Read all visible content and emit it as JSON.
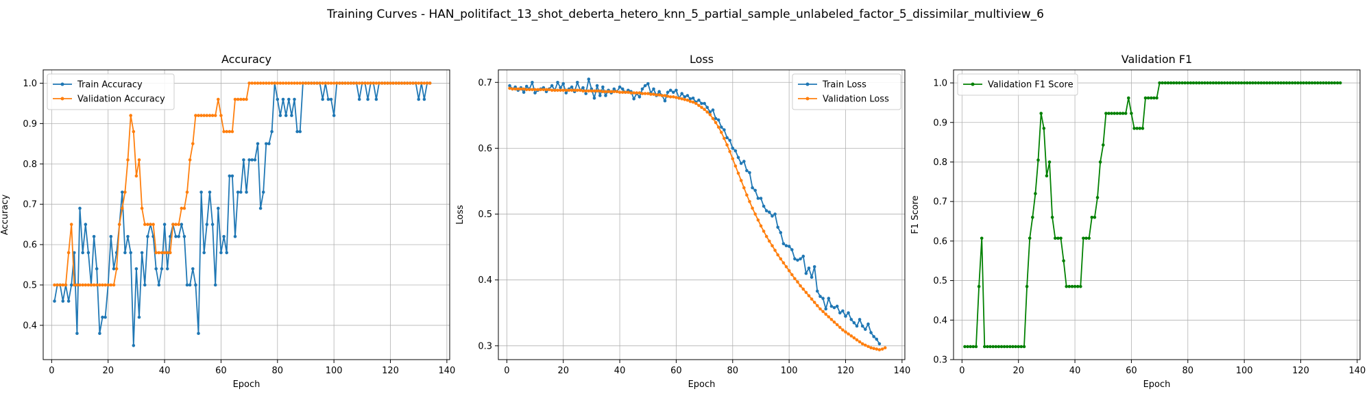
{
  "figure": {
    "suptitle": "Training Curves - HAN_politifact_13_shot_deberta_hetero_knn_5_partial_sample_unlabeled_factor_5_dissimilar_multiview_6"
  },
  "colors": {
    "blue": "#1f77b4",
    "orange": "#ff7f0e",
    "green": "#008000",
    "grid": "#b0b0b0"
  },
  "chart_data": [
    {
      "type": "line",
      "title": "Accuracy",
      "xlabel": "Epoch",
      "ylabel": "Accuracy",
      "xlim": [
        -3,
        141
      ],
      "ylim": [
        0.315,
        1.033
      ],
      "xticks": [
        0,
        20,
        40,
        60,
        80,
        100,
        120,
        140
      ],
      "yticks": [
        0.4,
        0.5,
        0.6,
        0.7,
        0.8,
        0.9,
        1.0
      ],
      "grid": true,
      "legend": "upper-left",
      "series": [
        {
          "name": "Train Accuracy",
          "color": "#1f77b4",
          "x_start": 1,
          "values": [
            0.46,
            0.5,
            0.5,
            0.46,
            0.5,
            0.46,
            0.5,
            0.58,
            0.38,
            0.69,
            0.58,
            0.65,
            0.58,
            0.5,
            0.62,
            0.54,
            0.38,
            0.42,
            0.42,
            0.5,
            0.62,
            0.54,
            0.58,
            0.65,
            0.73,
            0.58,
            0.62,
            0.58,
            0.35,
            0.54,
            0.42,
            0.58,
            0.5,
            0.62,
            0.65,
            0.62,
            0.54,
            0.5,
            0.54,
            0.65,
            0.54,
            0.62,
            0.65,
            0.62,
            0.62,
            0.65,
            0.62,
            0.5,
            0.5,
            0.54,
            0.5,
            0.38,
            0.73,
            0.58,
            0.65,
            0.73,
            0.65,
            0.5,
            0.69,
            0.58,
            0.62,
            0.58,
            0.77,
            0.77,
            0.62,
            0.73,
            0.73,
            0.81,
            0.73,
            0.81,
            0.81,
            0.81,
            0.85,
            0.69,
            0.73,
            0.85,
            0.85,
            0.88,
            1.0,
            0.96,
            0.92,
            0.96,
            0.92,
            0.96,
            0.92,
            0.96,
            0.88,
            0.88,
            1.0,
            1.0,
            1.0,
            1.0,
            1.0,
            1.0,
            1.0,
            0.96,
            1.0,
            0.96,
            0.96,
            0.92,
            1.0,
            1.0,
            1.0,
            1.0,
            1.0,
            1.0,
            1.0,
            1.0,
            0.96,
            1.0,
            1.0,
            0.96,
            1.0,
            1.0,
            0.96,
            1.0,
            1.0,
            1.0,
            1.0,
            1.0,
            1.0,
            1.0,
            1.0,
            1.0,
            1.0,
            1.0,
            1.0,
            1.0,
            1.0,
            0.96,
            1.0,
            0.96,
            1.0,
            1.0
          ]
        },
        {
          "name": "Validation Accuracy",
          "color": "#ff7f0e",
          "x_start": 1,
          "values": [
            0.5,
            0.5,
            0.5,
            0.5,
            0.5,
            0.58,
            0.65,
            0.5,
            0.5,
            0.5,
            0.5,
            0.5,
            0.5,
            0.5,
            0.5,
            0.5,
            0.5,
            0.5,
            0.5,
            0.5,
            0.5,
            0.5,
            0.54,
            0.65,
            0.69,
            0.73,
            0.81,
            0.92,
            0.88,
            0.77,
            0.81,
            0.69,
            0.65,
            0.65,
            0.65,
            0.65,
            0.58,
            0.58,
            0.58,
            0.58,
            0.58,
            0.58,
            0.65,
            0.65,
            0.65,
            0.69,
            0.69,
            0.73,
            0.81,
            0.85,
            0.92,
            0.92,
            0.92,
            0.92,
            0.92,
            0.92,
            0.92,
            0.92,
            0.96,
            0.92,
            0.88,
            0.88,
            0.88,
            0.88,
            0.96,
            0.96,
            0.96,
            0.96,
            0.96,
            1.0,
            1.0,
            1.0,
            1.0,
            1.0,
            1.0,
            1.0,
            1.0,
            1.0,
            1.0,
            1.0,
            1.0,
            1.0,
            1.0,
            1.0,
            1.0,
            1.0,
            1.0,
            1.0,
            1.0,
            1.0,
            1.0,
            1.0,
            1.0,
            1.0,
            1.0,
            1.0,
            1.0,
            1.0,
            1.0,
            1.0,
            1.0,
            1.0,
            1.0,
            1.0,
            1.0,
            1.0,
            1.0,
            1.0,
            1.0,
            1.0,
            1.0,
            1.0,
            1.0,
            1.0,
            1.0,
            1.0,
            1.0,
            1.0,
            1.0,
            1.0,
            1.0,
            1.0,
            1.0,
            1.0,
            1.0,
            1.0,
            1.0,
            1.0,
            1.0,
            1.0,
            1.0,
            1.0,
            1.0,
            1.0
          ]
        }
      ]
    },
    {
      "type": "line",
      "title": "Loss",
      "xlabel": "Epoch",
      "ylabel": "Loss",
      "xlim": [
        -3,
        141
      ],
      "ylim": [
        0.279,
        0.719
      ],
      "xticks": [
        0,
        20,
        40,
        60,
        80,
        100,
        120,
        140
      ],
      "yticks": [
        0.3,
        0.4,
        0.5,
        0.6,
        0.7
      ],
      "grid": true,
      "legend": "upper-right",
      "series": [
        {
          "name": "Train Loss",
          "color": "#1f77b4",
          "x_start": 1,
          "values": [
            0.695,
            0.69,
            0.693,
            0.688,
            0.692,
            0.685,
            0.694,
            0.69,
            0.7,
            0.684,
            0.688,
            0.69,
            0.692,
            0.686,
            0.69,
            0.695,
            0.688,
            0.7,
            0.692,
            0.698,
            0.684,
            0.69,
            0.693,
            0.686,
            0.7,
            0.688,
            0.692,
            0.683,
            0.705,
            0.69,
            0.676,
            0.695,
            0.68,
            0.693,
            0.68,
            0.688,
            0.684,
            0.69,
            0.686,
            0.693,
            0.69,
            0.685,
            0.688,
            0.686,
            0.675,
            0.683,
            0.678,
            0.69,
            0.695,
            0.698,
            0.684,
            0.69,
            0.68,
            0.686,
            0.68,
            0.672,
            0.685,
            0.688,
            0.685,
            0.688,
            0.676,
            0.683,
            0.678,
            0.68,
            0.675,
            0.676,
            0.67,
            0.673,
            0.668,
            0.668,
            0.662,
            0.655,
            0.658,
            0.645,
            0.643,
            0.632,
            0.628,
            0.616,
            0.612,
            0.6,
            0.596,
            0.586,
            0.577,
            0.58,
            0.566,
            0.563,
            0.54,
            0.536,
            0.524,
            0.524,
            0.512,
            0.505,
            0.503,
            0.497,
            0.5,
            0.48,
            0.472,
            0.455,
            0.452,
            0.451,
            0.446,
            0.432,
            0.43,
            0.432,
            0.436,
            0.41,
            0.418,
            0.404,
            0.42,
            0.383,
            0.375,
            0.372,
            0.356,
            0.372,
            0.36,
            0.358,
            0.36,
            0.35,
            0.353,
            0.345,
            0.35,
            0.34,
            0.335,
            0.33,
            0.34,
            0.33,
            0.325,
            0.333,
            0.32,
            0.314,
            0.31,
            0.303
          ]
        },
        {
          "name": "Validation Loss",
          "color": "#ff7f0e",
          "x_start": 1,
          "values": [
            0.691,
            0.69,
            0.69,
            0.69,
            0.69,
            0.69,
            0.689,
            0.689,
            0.689,
            0.689,
            0.689,
            0.689,
            0.689,
            0.689,
            0.689,
            0.688,
            0.688,
            0.688,
            0.688,
            0.688,
            0.688,
            0.688,
            0.688,
            0.688,
            0.688,
            0.688,
            0.687,
            0.687,
            0.687,
            0.687,
            0.687,
            0.687,
            0.687,
            0.686,
            0.686,
            0.686,
            0.686,
            0.686,
            0.686,
            0.685,
            0.685,
            0.685,
            0.685,
            0.684,
            0.684,
            0.684,
            0.684,
            0.683,
            0.683,
            0.683,
            0.682,
            0.682,
            0.681,
            0.681,
            0.68,
            0.68,
            0.679,
            0.678,
            0.678,
            0.677,
            0.676,
            0.675,
            0.674,
            0.673,
            0.671,
            0.67,
            0.668,
            0.665,
            0.662,
            0.659,
            0.655,
            0.651,
            0.645,
            0.639,
            0.632,
            0.624,
            0.615,
            0.605,
            0.595,
            0.584,
            0.573,
            0.562,
            0.551,
            0.54,
            0.529,
            0.519,
            0.509,
            0.5,
            0.491,
            0.482,
            0.474,
            0.466,
            0.459,
            0.452,
            0.445,
            0.438,
            0.432,
            0.426,
            0.42,
            0.414,
            0.408,
            0.402,
            0.397,
            0.391,
            0.386,
            0.381,
            0.376,
            0.371,
            0.366,
            0.361,
            0.356,
            0.352,
            0.348,
            0.344,
            0.34,
            0.336,
            0.332,
            0.328,
            0.324,
            0.321,
            0.318,
            0.315,
            0.312,
            0.309,
            0.306,
            0.303,
            0.301,
            0.299,
            0.297,
            0.296,
            0.295,
            0.294,
            0.295,
            0.297
          ]
        }
      ]
    },
    {
      "type": "line",
      "title": "Validation F1",
      "xlabel": "Epoch",
      "ylabel": "F1 Score",
      "xlim": [
        -3,
        141
      ],
      "ylim": [
        0.3,
        1.033
      ],
      "xticks": [
        0,
        20,
        40,
        60,
        80,
        100,
        120,
        140
      ],
      "yticks": [
        0.3,
        0.4,
        0.5,
        0.6,
        0.7,
        0.8,
        0.9,
        1.0
      ],
      "grid": true,
      "legend": "upper-left",
      "series": [
        {
          "name": "Validation F1 Score",
          "color": "#008000",
          "x_start": 1,
          "values": [
            0.333,
            0.333,
            0.333,
            0.333,
            0.333,
            0.485,
            0.607,
            0.333,
            0.333,
            0.333,
            0.333,
            0.333,
            0.333,
            0.333,
            0.333,
            0.333,
            0.333,
            0.333,
            0.333,
            0.333,
            0.333,
            0.333,
            0.485,
            0.607,
            0.66,
            0.72,
            0.805,
            0.923,
            0.885,
            0.765,
            0.8,
            0.66,
            0.607,
            0.607,
            0.607,
            0.55,
            0.485,
            0.485,
            0.485,
            0.485,
            0.485,
            0.485,
            0.607,
            0.607,
            0.607,
            0.66,
            0.66,
            0.71,
            0.8,
            0.843,
            0.923,
            0.923,
            0.923,
            0.923,
            0.923,
            0.923,
            0.923,
            0.923,
            0.962,
            0.923,
            0.885,
            0.885,
            0.885,
            0.885,
            0.962,
            0.962,
            0.962,
            0.962,
            0.962,
            1.0,
            1.0,
            1.0,
            1.0,
            1.0,
            1.0,
            1.0,
            1.0,
            1.0,
            1.0,
            1.0,
            1.0,
            1.0,
            1.0,
            1.0,
            1.0,
            1.0,
            1.0,
            1.0,
            1.0,
            1.0,
            1.0,
            1.0,
            1.0,
            1.0,
            1.0,
            1.0,
            1.0,
            1.0,
            1.0,
            1.0,
            1.0,
            1.0,
            1.0,
            1.0,
            1.0,
            1.0,
            1.0,
            1.0,
            1.0,
            1.0,
            1.0,
            1.0,
            1.0,
            1.0,
            1.0,
            1.0,
            1.0,
            1.0,
            1.0,
            1.0,
            1.0,
            1.0,
            1.0,
            1.0,
            1.0,
            1.0,
            1.0,
            1.0,
            1.0,
            1.0,
            1.0,
            1.0,
            1.0,
            1.0
          ]
        }
      ]
    }
  ]
}
